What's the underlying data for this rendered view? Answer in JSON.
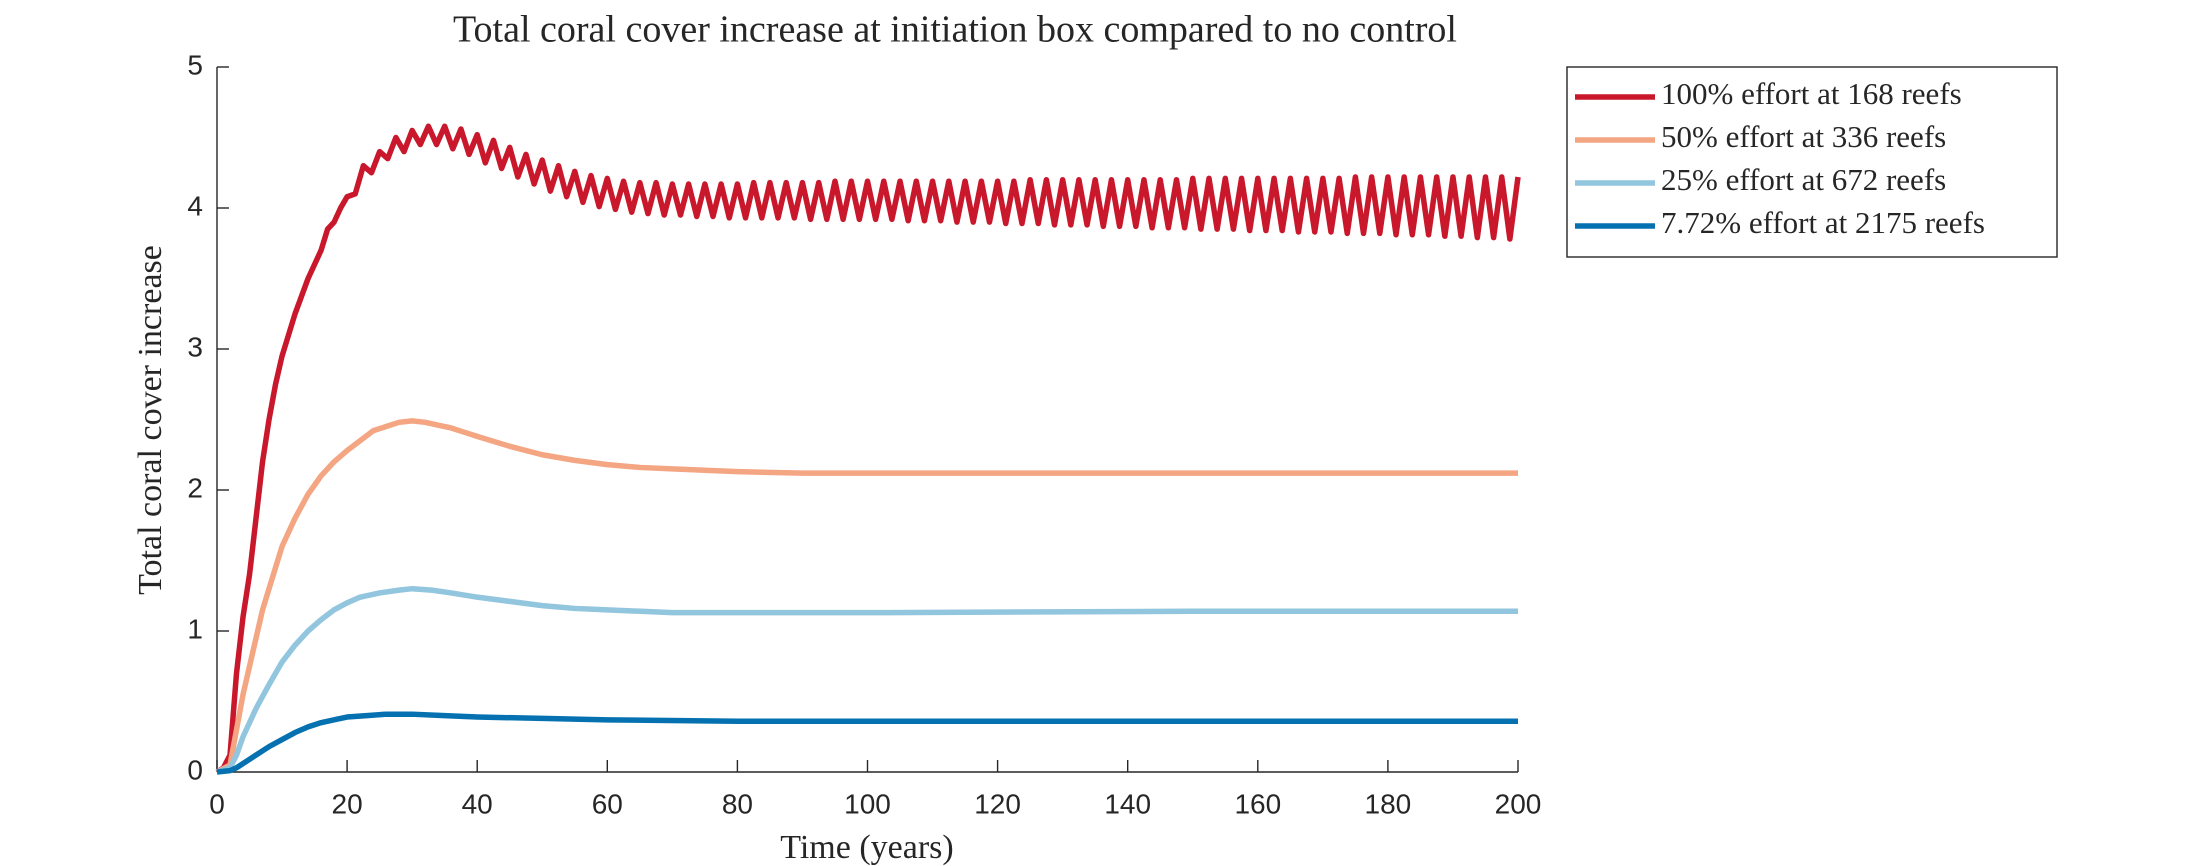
{
  "chart_data": {
    "type": "line",
    "title": "Total coral cover increase at initiation box compared to no control",
    "x_label": "Time (years)",
    "y_label": "Total coral cover increase",
    "xlim": [
      0,
      200
    ],
    "xticks": [
      0,
      20,
      40,
      60,
      80,
      100,
      120,
      140,
      160,
      180,
      200
    ],
    "ylim": [
      0,
      5
    ],
    "yticks": [
      0,
      1,
      2,
      3,
      4,
      5
    ],
    "legend": "outside-top-right",
    "series": [
      {
        "name": "100% effort at 168 reefs",
        "color": "#c9182c",
        "x": [
          0,
          1,
          2,
          3,
          4,
          5,
          6,
          7,
          8,
          9,
          10,
          12,
          14,
          16,
          17,
          18,
          19,
          20,
          21.25,
          22.5,
          23.75,
          25,
          26.25,
          27.5,
          28.75,
          30,
          31.25,
          32.5,
          33.75,
          35,
          36.25,
          37.5,
          38.75,
          40,
          41.25,
          42.5,
          43.75,
          45,
          46.25,
          47.5,
          48.75,
          50,
          51.25,
          52.5,
          53.75,
          55,
          56.25,
          57.5,
          58.75,
          60,
          61.25,
          62.5,
          63.75,
          65,
          66.25,
          67.5,
          68.75,
          70,
          71.25,
          72.5,
          73.75,
          75,
          76.25,
          77.5,
          78.75,
          80,
          81.25,
          82.5,
          83.75,
          85,
          86.25,
          87.5,
          88.75,
          90,
          91.25,
          92.5,
          93.75,
          95,
          96.25,
          97.5,
          98.75,
          100,
          101.25,
          102.5,
          103.75,
          105,
          106.25,
          107.5,
          108.75,
          110,
          111.25,
          112.5,
          113.75,
          115,
          116.25,
          117.5,
          118.75,
          120,
          121.25,
          122.5,
          123.75,
          125,
          126.25,
          127.5,
          128.75,
          130,
          131.25,
          132.5,
          133.75,
          135,
          136.25,
          137.5,
          138.75,
          140,
          141.25,
          142.5,
          143.75,
          145,
          146.25,
          147.5,
          148.75,
          150,
          151.25,
          152.5,
          153.75,
          155,
          156.25,
          157.5,
          158.75,
          160,
          161.25,
          162.5,
          163.75,
          165,
          166.25,
          167.5,
          168.75,
          170,
          171.25,
          172.5,
          173.75,
          175,
          176.25,
          177.5,
          178.75,
          180,
          181.25,
          182.5,
          183.75,
          185,
          186.25,
          187.5,
          188.75,
          190,
          191.25,
          192.5,
          193.75,
          195,
          196.25,
          197.5,
          198.75,
          200
        ],
        "values": [
          0,
          0.03,
          0.12,
          0.7,
          1.1,
          1.4,
          1.8,
          2.2,
          2.5,
          2.75,
          2.95,
          3.25,
          3.5,
          3.7,
          3.85,
          3.9,
          4.0,
          4.08,
          4.1,
          4.3,
          4.25,
          4.4,
          4.35,
          4.5,
          4.4,
          4.55,
          4.45,
          4.58,
          4.45,
          4.58,
          4.42,
          4.56,
          4.38,
          4.52,
          4.32,
          4.48,
          4.28,
          4.43,
          4.22,
          4.38,
          4.17,
          4.34,
          4.12,
          4.3,
          4.08,
          4.26,
          4.04,
          4.23,
          4.01,
          4.21,
          3.99,
          4.19,
          3.97,
          4.18,
          3.96,
          4.18,
          3.95,
          4.17,
          3.95,
          4.17,
          3.94,
          4.17,
          3.94,
          4.17,
          3.93,
          4.17,
          3.93,
          4.18,
          3.93,
          4.18,
          3.93,
          4.18,
          3.93,
          4.18,
          3.92,
          4.18,
          3.92,
          4.19,
          3.92,
          4.19,
          3.92,
          4.19,
          3.92,
          4.19,
          3.92,
          4.19,
          3.91,
          4.19,
          3.91,
          4.19,
          3.91,
          4.19,
          3.9,
          4.19,
          3.9,
          4.19,
          3.9,
          4.19,
          3.89,
          4.19,
          3.89,
          4.2,
          3.89,
          4.2,
          3.88,
          4.2,
          3.88,
          4.2,
          3.88,
          4.2,
          3.87,
          4.2,
          3.87,
          4.2,
          3.87,
          4.2,
          3.86,
          4.2,
          3.86,
          4.2,
          3.86,
          4.21,
          3.85,
          4.21,
          3.85,
          4.21,
          3.85,
          4.21,
          3.84,
          4.21,
          3.84,
          4.21,
          3.84,
          4.21,
          3.83,
          4.21,
          3.83,
          4.21,
          3.83,
          4.21,
          3.82,
          4.22,
          3.82,
          4.22,
          3.82,
          4.22,
          3.81,
          4.22,
          3.81,
          4.22,
          3.81,
          4.22,
          3.8,
          4.22,
          3.8,
          4.22,
          3.79,
          4.22,
          3.79,
          4.22,
          3.78,
          4.22
        ]
      },
      {
        "name": "50% effort at 336 reefs",
        "color": "#f4a582",
        "x": [
          0,
          2,
          3,
          4,
          5,
          6,
          7,
          8,
          10,
          12,
          14,
          16,
          18,
          20,
          22,
          24,
          26,
          28,
          30,
          32,
          34,
          36,
          38,
          40,
          45,
          50,
          55,
          60,
          65,
          70,
          80,
          90,
          100,
          120,
          150,
          200
        ],
        "values": [
          0,
          0.05,
          0.3,
          0.55,
          0.75,
          0.95,
          1.15,
          1.3,
          1.6,
          1.8,
          1.97,
          2.1,
          2.2,
          2.28,
          2.35,
          2.42,
          2.45,
          2.48,
          2.49,
          2.48,
          2.46,
          2.44,
          2.41,
          2.38,
          2.31,
          2.25,
          2.21,
          2.18,
          2.16,
          2.15,
          2.13,
          2.12,
          2.12,
          2.12,
          2.12,
          2.12
        ]
      },
      {
        "name": "25% effort at 672 reefs",
        "color": "#92c5de",
        "x": [
          0,
          2,
          3,
          4,
          5,
          6,
          8,
          10,
          12,
          14,
          16,
          18,
          20,
          22,
          25,
          28,
          30,
          33,
          36,
          40,
          45,
          50,
          55,
          60,
          70,
          80,
          100,
          150,
          200
        ],
        "values": [
          0,
          0.03,
          0.12,
          0.25,
          0.35,
          0.45,
          0.62,
          0.78,
          0.9,
          1.0,
          1.08,
          1.15,
          1.2,
          1.24,
          1.27,
          1.29,
          1.3,
          1.29,
          1.27,
          1.24,
          1.21,
          1.18,
          1.16,
          1.15,
          1.13,
          1.13,
          1.13,
          1.14,
          1.14
        ]
      },
      {
        "name": "7.72% effort at 2175 reefs",
        "color": "#0571b0",
        "x": [
          0,
          2,
          3,
          4,
          6,
          8,
          10,
          12,
          14,
          16,
          18,
          20,
          23,
          26,
          30,
          35,
          40,
          50,
          60,
          80,
          100,
          150,
          200
        ],
        "values": [
          0,
          0.01,
          0.03,
          0.06,
          0.12,
          0.18,
          0.23,
          0.28,
          0.32,
          0.35,
          0.37,
          0.39,
          0.4,
          0.41,
          0.41,
          0.4,
          0.39,
          0.38,
          0.37,
          0.36,
          0.36,
          0.36,
          0.36
        ]
      }
    ]
  }
}
